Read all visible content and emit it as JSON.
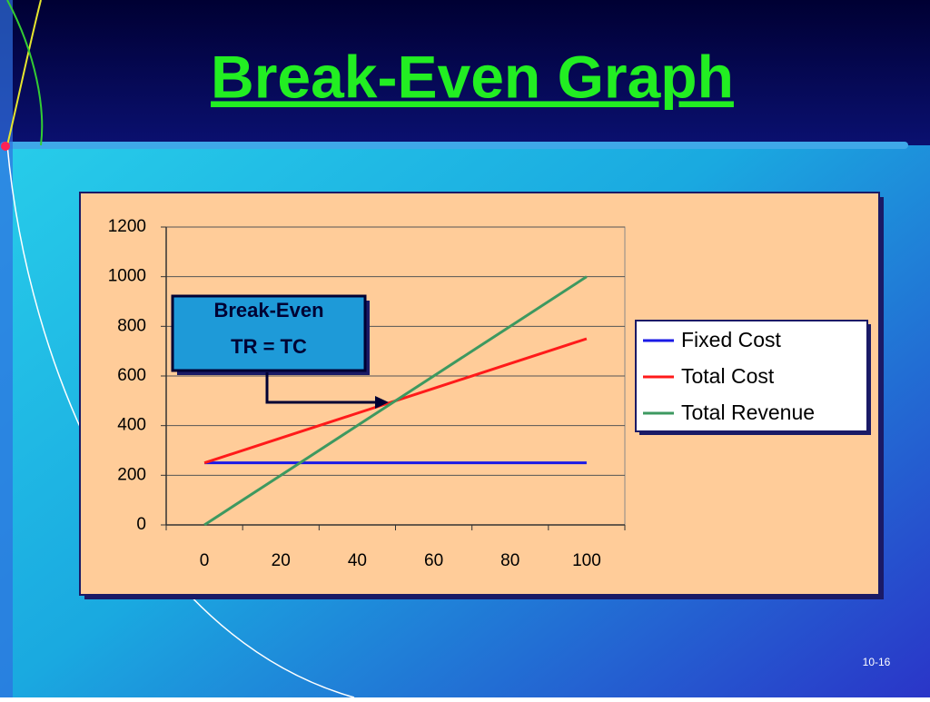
{
  "chart_data": {
    "type": "line",
    "title": "Break-Even Graph",
    "x": [
      0,
      20,
      40,
      60,
      80,
      100
    ],
    "series": [
      {
        "name": "Fixed Cost",
        "color": "#1a1ae6",
        "values": [
          250,
          250,
          250,
          250,
          250,
          250
        ]
      },
      {
        "name": "Total Cost",
        "color": "#ff1a1a",
        "values": [
          250,
          350,
          450,
          550,
          650,
          750
        ]
      },
      {
        "name": "Total Revenue",
        "color": "#3d9960",
        "values": [
          0,
          200,
          400,
          600,
          800,
          1000
        ]
      }
    ],
    "ylim": [
      0,
      1200
    ],
    "yticks": [
      0,
      200,
      400,
      600,
      800,
      1000,
      1200
    ],
    "grid": true,
    "legend": "right",
    "annotation": {
      "title": "Break-Even",
      "text": "TR = TC"
    },
    "slide_number": "10-16"
  }
}
